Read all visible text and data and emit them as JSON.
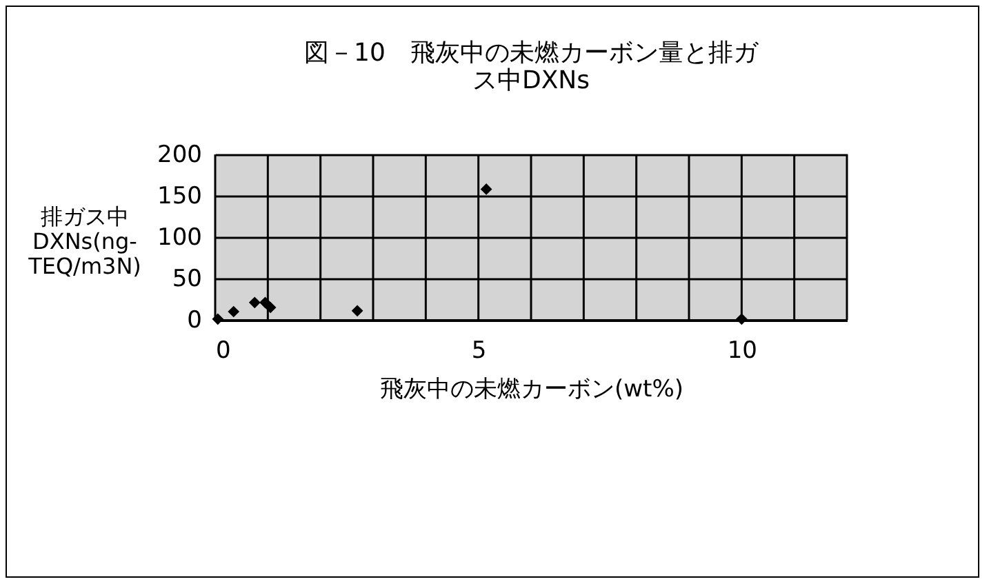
{
  "chart_data": {
    "type": "scatter",
    "title": [
      "図－10　飛灰中の未燃カーボン量と排ガ",
      "ス中DXNs"
    ],
    "xlabel": "飛灰中の未燃カーボン(wt%)",
    "ylabel": [
      "排ガス中",
      "DXNs(ng-",
      "TEQ/m3N)"
    ],
    "x": [
      0.05,
      0.35,
      0.75,
      0.95,
      1.05,
      2.7,
      5.15,
      10.0
    ],
    "series": [
      {
        "color": "#000000",
        "values": [
          1,
          10,
          21,
          21,
          15,
          11,
          158,
          1
        ]
      }
    ],
    "xlim": [
      0,
      12
    ],
    "xticks": [
      0,
      5,
      10
    ],
    "ylim": [
      0,
      200
    ],
    "yticks": [
      0,
      50,
      100,
      150,
      200
    ],
    "grid": true,
    "marker": "diamond"
  }
}
